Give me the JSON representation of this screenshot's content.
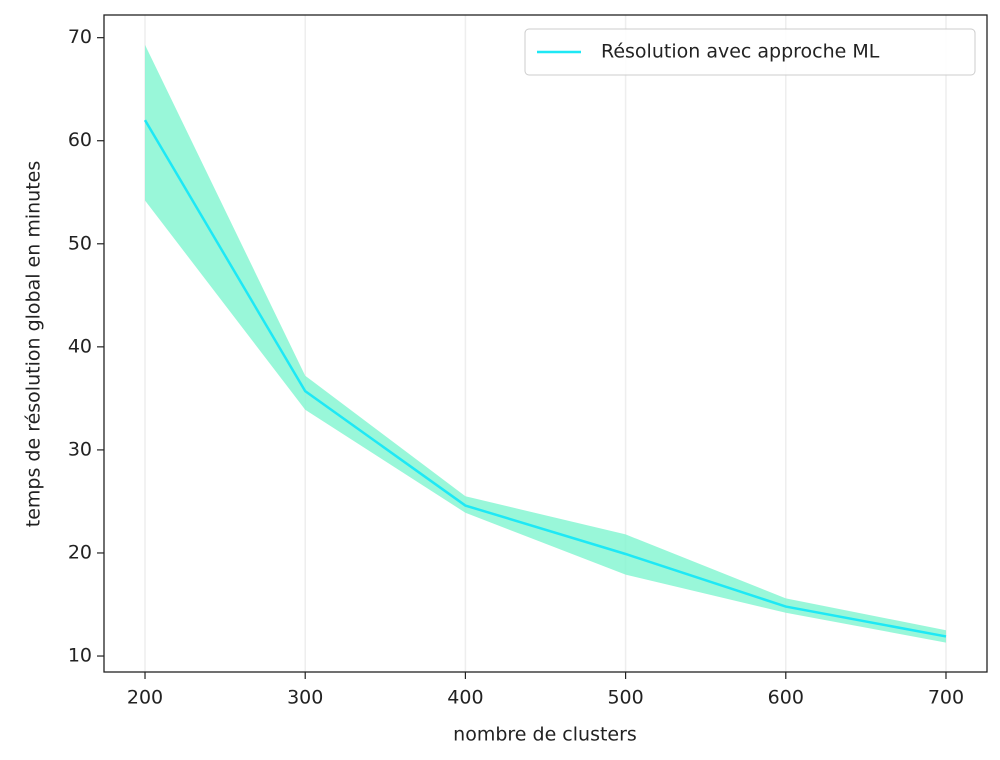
{
  "chart_data": {
    "type": "line",
    "x_label": "nombre de clusters",
    "y_label": "temps de résolution global en minutes",
    "x": [
      200,
      300,
      400,
      500,
      600,
      700
    ],
    "series": [
      {
        "name": "Résolution avec approche ML",
        "color": "#1ee8f5",
        "band_color": "#7ff5cf",
        "values": [
          62,
          35.7,
          24.6,
          19.9,
          14.8,
          11.9
        ],
        "lower": [
          54.2,
          33.9,
          23.9,
          17.9,
          14.2,
          11.3
        ],
        "upper": [
          69.3,
          37.2,
          25.5,
          21.8,
          15.6,
          12.5
        ]
      }
    ],
    "xlim": [
      174.4,
      725.6
    ],
    "xticks": [
      200,
      300,
      400,
      500,
      600,
      700
    ],
    "ylim": [
      8.45,
      72.2
    ],
    "yticks": [
      10,
      20,
      30,
      40,
      50,
      60,
      70
    ],
    "grid": "x",
    "legend": "upper right"
  }
}
